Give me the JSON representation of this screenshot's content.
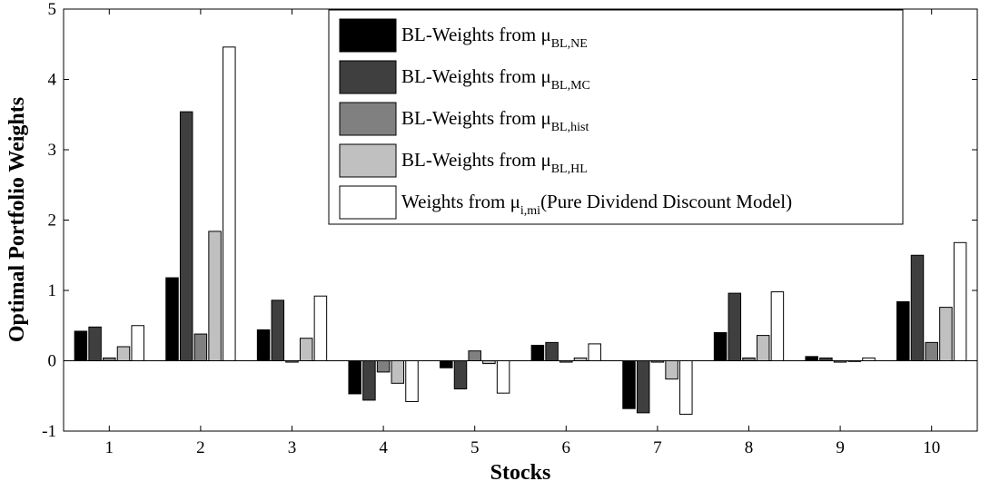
{
  "chart_data": {
    "type": "bar",
    "title": "",
    "xlabel": "Stocks",
    "ylabel": "Optimal Portfolio Weights",
    "ylim": [
      -1,
      5
    ],
    "yticks": [
      "-1",
      "0",
      "1",
      "2",
      "3",
      "4",
      "5"
    ],
    "categories": [
      "1",
      "2",
      "3",
      "4",
      "5",
      "6",
      "7",
      "8",
      "9",
      "10"
    ],
    "grid": false,
    "legend_position": "top-right",
    "series": [
      {
        "name": "BL-Weights from μBL,NE",
        "legend_main": "BL-Weights from μ",
        "legend_sub": "BL,NE",
        "legend_suffix": "",
        "color": "#000000",
        "values": [
          0.42,
          1.18,
          0.44,
          -0.47,
          -0.1,
          0.22,
          -0.68,
          0.4,
          0.06,
          0.84
        ]
      },
      {
        "name": "BL-Weights from μBL,MC",
        "legend_main": "BL-Weights from μ",
        "legend_sub": "BL,MC",
        "legend_suffix": "",
        "color": "#3f3f3f",
        "values": [
          0.48,
          3.54,
          0.86,
          -0.56,
          -0.4,
          0.26,
          -0.74,
          0.96,
          0.04,
          1.5
        ]
      },
      {
        "name": "BL-Weights from μBL,hist",
        "legend_main": "BL-Weights from μ",
        "legend_sub": "BL,hist",
        "legend_suffix": "",
        "color": "#808080",
        "values": [
          0.04,
          0.38,
          -0.02,
          -0.16,
          0.14,
          -0.02,
          -0.02,
          0.04,
          -0.02,
          0.26
        ]
      },
      {
        "name": "BL-Weights from μBL,HL",
        "legend_main": "BL-Weights from μ",
        "legend_sub": "BL,HL",
        "legend_suffix": "",
        "color": "#c0c0c0",
        "values": [
          0.2,
          1.84,
          0.32,
          -0.32,
          -0.04,
          0.04,
          -0.26,
          0.36,
          0.0,
          0.76
        ]
      },
      {
        "name": "Weights from μi,mi(Pure Dividend Discount Model)",
        "legend_main": "Weights from μ",
        "legend_sub": "i,mi",
        "legend_suffix": "(Pure Dividend Discount Model)",
        "color": "#ffffff",
        "values": [
          0.5,
          4.46,
          0.92,
          -0.58,
          -0.46,
          0.24,
          -0.76,
          0.98,
          0.04,
          1.68
        ]
      }
    ]
  }
}
